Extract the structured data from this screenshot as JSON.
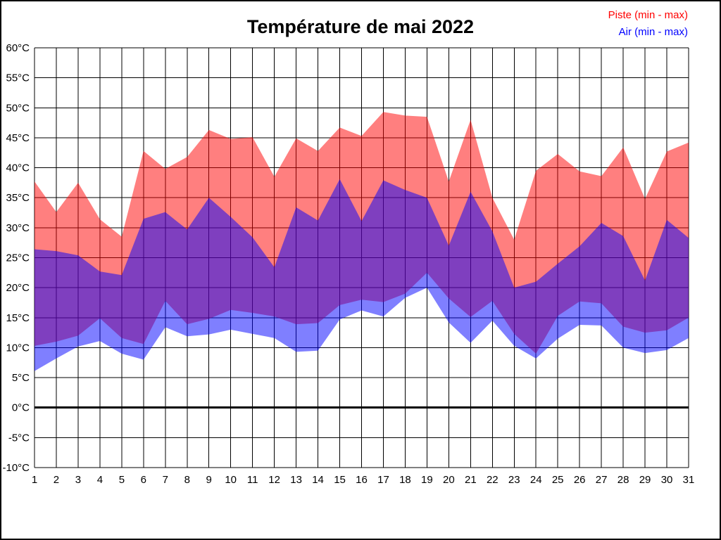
{
  "title": "Température de mai 2022",
  "legend": {
    "piste": {
      "label": "Piste (min - max)",
      "color": "#ff0000"
    },
    "air": {
      "label": "Air (min - max)",
      "color": "#0000ff"
    }
  },
  "colors": {
    "piste_fill": "#ff0000",
    "air_fill": "#0000ff",
    "overlap_seen_as": "#8040c0",
    "grid": "#000000",
    "background": "#ffffff"
  },
  "chart_data": {
    "type": "area",
    "title": "Température de mai 2022",
    "xlabel": "",
    "ylabel": "",
    "x": [
      1,
      2,
      3,
      4,
      5,
      6,
      7,
      8,
      9,
      10,
      11,
      12,
      13,
      14,
      15,
      16,
      17,
      18,
      19,
      20,
      21,
      22,
      23,
      24,
      25,
      26,
      27,
      28,
      29,
      30,
      31
    ],
    "series": [
      {
        "name": "Piste (min - max)",
        "color": "#ff0000",
        "max": [
          37.7,
          32.6,
          37.5,
          31.4,
          28.5,
          42.8,
          39.8,
          41.8,
          46.3,
          44.8,
          45.1,
          38.5,
          44.9,
          42.8,
          46.7,
          45.3,
          49.3,
          48.7,
          48.5,
          37.7,
          48.0,
          35.0,
          28.0,
          39.5,
          42.3,
          39.4,
          38.6,
          43.4,
          34.8,
          42.7,
          44.2
        ],
        "min": [
          10.3,
          11.0,
          12.0,
          14.9,
          11.6,
          10.6,
          17.8,
          13.9,
          14.8,
          16.3,
          15.8,
          15.2,
          13.9,
          14.1,
          17.1,
          18.0,
          17.6,
          19.0,
          22.5,
          18.2,
          15.1,
          17.8,
          12.3,
          9.0,
          15.3,
          17.7,
          17.4,
          13.5,
          12.5,
          12.9,
          15.0
        ]
      },
      {
        "name": "Air (min - max)",
        "color": "#0000ff",
        "max": [
          26.4,
          26.1,
          25.4,
          22.7,
          22.1,
          31.5,
          32.6,
          29.7,
          35.0,
          31.8,
          28.4,
          23.4,
          33.4,
          31.2,
          38.1,
          31.1,
          37.9,
          36.3,
          35.0,
          27.0,
          36.0,
          29.4,
          20.0,
          21.0,
          24.0,
          26.9,
          30.8,
          28.6,
          21.2,
          31.3,
          28.3
        ],
        "min": [
          6.1,
          8.2,
          10.2,
          11.1,
          9.0,
          8.0,
          13.4,
          11.9,
          12.2,
          13.0,
          12.3,
          11.6,
          9.3,
          9.5,
          14.7,
          16.2,
          15.2,
          18.3,
          20.0,
          14.2,
          10.8,
          14.5,
          10.3,
          8.2,
          11.5,
          13.8,
          13.7,
          10.0,
          9.1,
          9.6,
          11.6
        ]
      }
    ],
    "ylim": [
      -10,
      60
    ],
    "y_tick_step": 5,
    "y_ticks": [
      {
        "value": 60,
        "label": "60°C"
      },
      {
        "value": 55,
        "label": "55°C"
      },
      {
        "value": 50,
        "label": "50°C"
      },
      {
        "value": 45,
        "label": "45°C"
      },
      {
        "value": 40,
        "label": "40°C"
      },
      {
        "value": 35,
        "label": "35°C"
      },
      {
        "value": 30,
        "label": "30°C"
      },
      {
        "value": 25,
        "label": "25°C"
      },
      {
        "value": 20,
        "label": "20°C"
      },
      {
        "value": 15,
        "label": "15°C"
      },
      {
        "value": 10,
        "label": "10°C"
      },
      {
        "value": 5,
        "label": "5°C"
      },
      {
        "value": 0,
        "label": "0°C"
      },
      {
        "value": -5,
        "label": "-5°C"
      },
      {
        "value": -10,
        "label": "-10°C"
      }
    ],
    "x_ticks": [
      1,
      2,
      3,
      4,
      5,
      6,
      7,
      8,
      9,
      10,
      11,
      12,
      13,
      14,
      15,
      16,
      17,
      18,
      19,
      20,
      21,
      22,
      23,
      24,
      25,
      26,
      27,
      28,
      29,
      30,
      31
    ],
    "grid": true,
    "zero_line": true,
    "legend_position": "top-right"
  }
}
